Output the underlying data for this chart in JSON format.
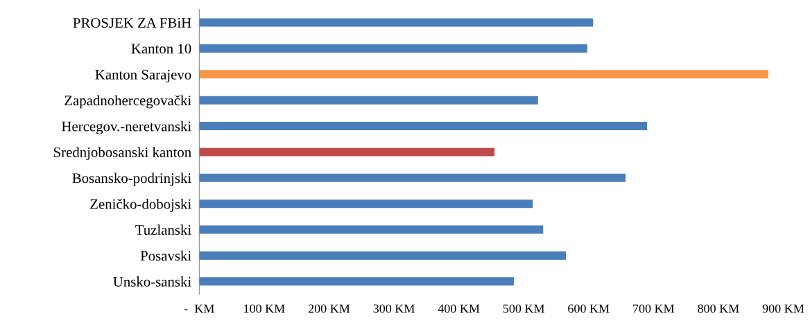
{
  "chart_data": {
    "type": "bar",
    "orientation": "horizontal",
    "categories": [
      "PROSJEK ZA FBiH",
      "Kanton 10",
      "Kanton Sarajevo",
      "Zapadnohercegovački",
      "Hercegov.-neretvanski",
      "Srednjobosanski kanton",
      "Bosansko-podrinjski",
      "Zeničko-dobojski",
      "Tuzlanski",
      "Posavski",
      "Unsko-sanski"
    ],
    "values": [
      607,
      598,
      877,
      522,
      690,
      455,
      657,
      514,
      530,
      565,
      485
    ],
    "colors": [
      "#4a7ebb",
      "#4a7ebb",
      "#f79646",
      "#4a7ebb",
      "#4a7ebb",
      "#be4b48",
      "#4a7ebb",
      "#4a7ebb",
      "#4a7ebb",
      "#4a7ebb",
      "#4a7ebb"
    ],
    "xlim": [
      0,
      900
    ],
    "xticks": [
      {
        "value": 0,
        "label": "-  KM"
      },
      {
        "value": 100,
        "label": "100 KM"
      },
      {
        "value": 200,
        "label": "200 KM"
      },
      {
        "value": 300,
        "label": "300 KM"
      },
      {
        "value": 400,
        "label": "400 KM"
      },
      {
        "value": 500,
        "label": "500 KM"
      },
      {
        "value": 600,
        "label": "600 KM"
      },
      {
        "value": 700,
        "label": "700 KM"
      },
      {
        "value": 800,
        "label": "800 KM"
      },
      {
        "value": 900,
        "label": "900 KM"
      }
    ],
    "grid": false,
    "legend": false
  }
}
